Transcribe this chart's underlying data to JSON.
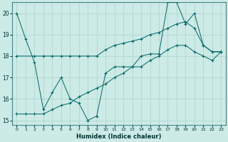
{
  "xlabel": "Humidex (Indice chaleur)",
  "bg_color": "#cceae6",
  "line_color": "#006666",
  "grid_color": "#b0d8d0",
  "xlim": [
    -0.5,
    23.5
  ],
  "ylim": [
    14.8,
    20.5
  ],
  "yticks": [
    15,
    16,
    17,
    18,
    19,
    20
  ],
  "xticks": [
    0,
    1,
    2,
    3,
    4,
    5,
    6,
    7,
    8,
    9,
    10,
    11,
    12,
    13,
    14,
    15,
    16,
    17,
    18,
    19,
    20,
    21,
    22,
    23
  ],
  "line1_x": [
    0,
    1,
    2,
    3,
    4,
    5,
    6,
    7,
    8,
    9,
    10,
    11,
    12,
    13,
    14,
    15,
    16,
    17,
    18,
    19,
    20,
    21,
    22,
    23
  ],
  "line1_y": [
    20.0,
    18.8,
    17.7,
    15.5,
    16.3,
    17.0,
    16.0,
    15.8,
    15.0,
    15.2,
    17.2,
    17.5,
    17.5,
    17.5,
    18.0,
    18.1,
    18.1,
    20.5,
    20.5,
    19.5,
    20.0,
    18.5,
    18.2,
    18.2
  ],
  "line2_x": [
    0,
    2,
    3,
    4,
    5,
    6,
    7,
    8,
    9,
    10,
    11,
    12,
    13,
    14,
    15,
    16,
    17,
    18,
    19,
    20,
    21,
    22,
    23
  ],
  "line2_y": [
    18.0,
    18.0,
    18.0,
    18.0,
    18.0,
    18.0,
    18.0,
    18.0,
    18.0,
    18.3,
    18.5,
    18.6,
    18.7,
    18.8,
    19.0,
    19.1,
    19.3,
    19.5,
    19.6,
    19.3,
    18.5,
    18.2,
    18.2
  ],
  "line3_x": [
    0,
    1,
    2,
    3,
    4,
    5,
    6,
    7,
    8,
    9,
    10,
    11,
    12,
    13,
    14,
    15,
    16,
    17,
    18,
    19,
    20,
    21,
    22,
    23
  ],
  "line3_y": [
    15.3,
    15.3,
    15.3,
    15.3,
    15.5,
    15.7,
    15.8,
    16.1,
    16.3,
    16.5,
    16.7,
    17.0,
    17.2,
    17.5,
    17.5,
    17.8,
    18.0,
    18.3,
    18.5,
    18.5,
    18.2,
    18.0,
    17.8,
    18.2
  ]
}
